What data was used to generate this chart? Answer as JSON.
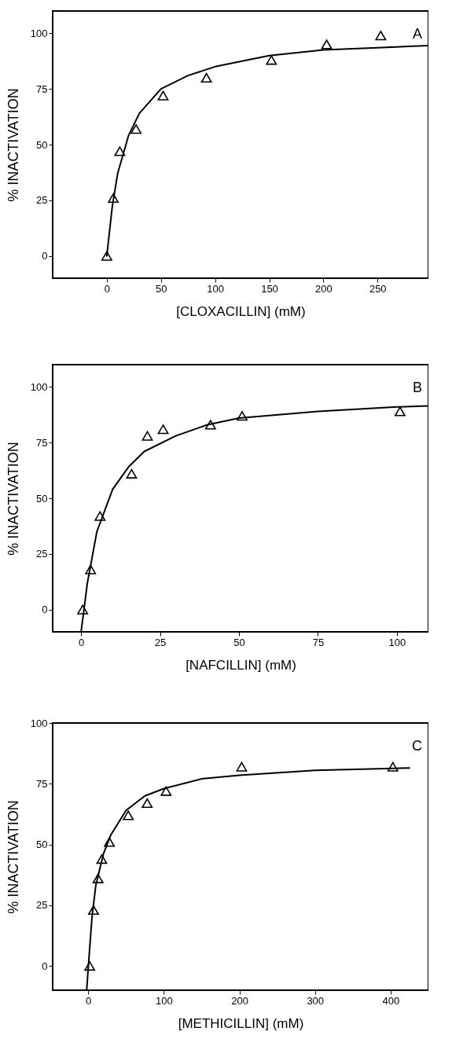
{
  "chart_data": [
    {
      "type": "scatter",
      "xlabel": "[CLOXACILLIN] (mM)",
      "ylabel": "% INACTIVATION",
      "xlim": [
        -50,
        297
      ],
      "ylim": [
        -10,
        110
      ],
      "xticks": [
        0,
        50,
        100,
        150,
        200,
        250
      ],
      "yticks": [
        0,
        25,
        50,
        75,
        100
      ],
      "grid": false,
      "annotations": [
        "A"
      ],
      "series": [
        {
          "color": "#000000",
          "marker": "triangle",
          "x": [
            0,
            6,
            12,
            27,
            52,
            92,
            152,
            203,
            253
          ],
          "values": [
            0,
            26,
            47,
            57,
            72,
            80,
            88,
            95,
            99
          ]
        },
        {
          "type": "line",
          "color": "#000000",
          "marker": "none",
          "line_style": "solid",
          "x": [
            0,
            5,
            10,
            20,
            30,
            50,
            75,
            100,
            150,
            200,
            250,
            297
          ],
          "values": [
            0,
            22,
            37,
            54,
            64,
            75,
            81,
            85,
            90,
            92.5,
            93.5,
            94.5
          ]
        }
      ]
    },
    {
      "type": "scatter",
      "xlabel": "[NAFCILLIN] (mM)",
      "ylabel": "% INACTIVATION",
      "xlim": [
        -9,
        110
      ],
      "ylim": [
        -10,
        110
      ],
      "xticks": [
        0,
        25,
        50,
        75,
        100
      ],
      "yticks": [
        0,
        25,
        50,
        75,
        100
      ],
      "grid": false,
      "annotations": [
        "B"
      ],
      "series": [
        {
          "color": "#000000",
          "marker": "triangle",
          "x": [
            0.5,
            3,
            6,
            16,
            21,
            26,
            41,
            51,
            101
          ],
          "values": [
            0,
            18,
            42,
            61,
            78,
            81,
            83,
            87,
            89
          ]
        },
        {
          "type": "line",
          "color": "#000000",
          "marker": "none",
          "line_style": "solid",
          "x": [
            0,
            2,
            5,
            10,
            15,
            20,
            30,
            40,
            50,
            75,
            100,
            110
          ],
          "values": [
            -10,
            12,
            35,
            54,
            64,
            71,
            78,
            83,
            86,
            89,
            91,
            91.5
          ]
        }
      ]
    },
    {
      "type": "scatter",
      "xlabel": "[METHICILLIN] (mM)",
      "ylabel": "% INACTIVATION",
      "xlim": [
        -47,
        450
      ],
      "ylim": [
        -10,
        100
      ],
      "xticks": [
        0,
        100,
        200,
        300,
        400
      ],
      "yticks": [
        0,
        25,
        50,
        75,
        100
      ],
      "grid": false,
      "annotations": [
        "C"
      ],
      "series": [
        {
          "color": "#000000",
          "marker": "triangle",
          "x": [
            2,
            7,
            13,
            18,
            28,
            53,
            78,
            103,
            203,
            403
          ],
          "values": [
            0,
            23,
            36,
            44,
            51,
            62,
            67,
            72,
            82,
            82
          ]
        },
        {
          "type": "line",
          "color": "#000000",
          "marker": "none",
          "line_style": "solid",
          "x": [
            -2,
            0,
            5,
            10,
            20,
            30,
            50,
            75,
            100,
            150,
            200,
            300,
            425
          ],
          "values": [
            -10,
            -1,
            20,
            33,
            46,
            54,
            64,
            70,
            73,
            77,
            78.5,
            80.5,
            81.5
          ]
        }
      ]
    }
  ]
}
